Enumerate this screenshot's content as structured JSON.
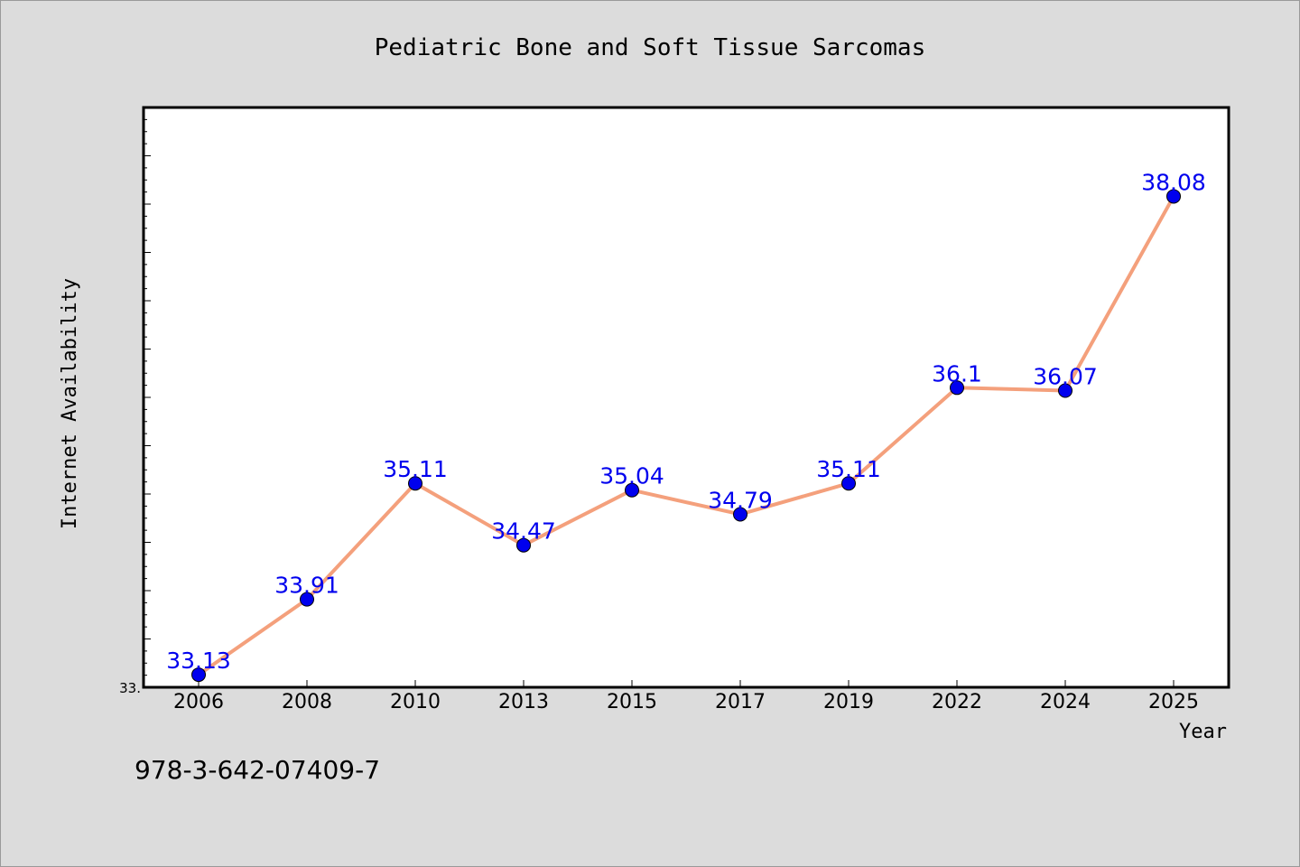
{
  "chart_data": {
    "type": "line",
    "title": "Pediatric Bone and Soft Tissue Sarcomas",
    "xlabel": "Year",
    "ylabel": "Internet Availability",
    "categories": [
      "2006",
      "2008",
      "2010",
      "2013",
      "2015",
      "2017",
      "2019",
      "2022",
      "2024",
      "2025"
    ],
    "series": [
      {
        "values": [
          33.13,
          33.91,
          35.11,
          34.47,
          35.04,
          34.79,
          35.11,
          36.1,
          36.07,
          38.08
        ]
      }
    ],
    "data_labels": [
      "33.13",
      "33.91",
      "35.11",
      "34.47",
      "35.04",
      "34.79",
      "35.11",
      "36.1",
      "36.07",
      "38.08"
    ],
    "y_tick_labels": [
      "33."
    ],
    "ylim": [
      33.0,
      39.0
    ],
    "line_color": "#f4a07c",
    "marker_color": "#0000ee",
    "label_color": "#0000ee",
    "grid": false,
    "legend": "none"
  },
  "footer": {
    "text": "978-3-642-07409-7"
  }
}
